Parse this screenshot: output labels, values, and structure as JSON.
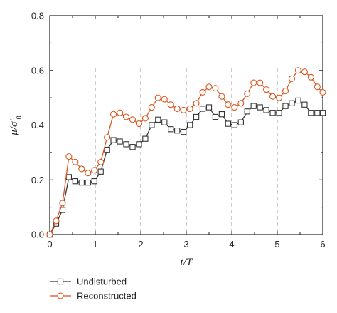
{
  "chart_data": {
    "type": "line",
    "xlabel": "t/T",
    "ylabel": "μ/σ′0",
    "xlim": [
      0,
      6
    ],
    "ylim": [
      0,
      0.8
    ],
    "xticks": [
      "0",
      "1",
      "2",
      "3",
      "4",
      "5",
      "6"
    ],
    "yticks": [
      "0.0",
      "0.2",
      "0.4",
      "0.6",
      "0.8"
    ],
    "vlines": [
      1,
      2,
      3,
      4,
      5
    ],
    "legend_position": "bottom-left",
    "series": [
      {
        "name": "Undisturbed",
        "color": "#333333",
        "marker": "square",
        "x": [
          0,
          0.14,
          0.28,
          0.42,
          0.56,
          0.7,
          0.84,
          0.98,
          1.12,
          1.26,
          1.4,
          1.54,
          1.68,
          1.82,
          1.96,
          2.1,
          2.24,
          2.38,
          2.52,
          2.66,
          2.8,
          2.94,
          3.08,
          3.22,
          3.36,
          3.5,
          3.64,
          3.78,
          3.92,
          4.06,
          4.2,
          4.34,
          4.48,
          4.62,
          4.76,
          4.9,
          5.04,
          5.18,
          5.32,
          5.46,
          5.6,
          5.74,
          5.88,
          6.0
        ],
        "values": [
          0.0,
          0.04,
          0.09,
          0.21,
          0.195,
          0.19,
          0.19,
          0.195,
          0.23,
          0.31,
          0.345,
          0.34,
          0.33,
          0.32,
          0.33,
          0.35,
          0.4,
          0.42,
          0.41,
          0.385,
          0.38,
          0.375,
          0.4,
          0.43,
          0.46,
          0.465,
          0.43,
          0.44,
          0.405,
          0.4,
          0.41,
          0.45,
          0.47,
          0.465,
          0.455,
          0.445,
          0.445,
          0.47,
          0.48,
          0.49,
          0.475,
          0.445,
          0.445,
          0.445
        ]
      },
      {
        "name": "Reconstructed",
        "color": "#d9541e",
        "marker": "circle",
        "x": [
          0,
          0.14,
          0.28,
          0.42,
          0.56,
          0.7,
          0.84,
          0.98,
          1.12,
          1.26,
          1.4,
          1.54,
          1.68,
          1.82,
          1.96,
          2.1,
          2.24,
          2.38,
          2.52,
          2.66,
          2.8,
          2.94,
          3.08,
          3.22,
          3.36,
          3.5,
          3.64,
          3.78,
          3.92,
          4.06,
          4.2,
          4.34,
          4.48,
          4.62,
          4.76,
          4.9,
          5.04,
          5.18,
          5.32,
          5.46,
          5.6,
          5.74,
          5.88,
          6.0
        ],
        "values": [
          0.0,
          0.05,
          0.115,
          0.285,
          0.265,
          0.24,
          0.225,
          0.235,
          0.265,
          0.355,
          0.44,
          0.445,
          0.43,
          0.42,
          0.405,
          0.425,
          0.465,
          0.5,
          0.495,
          0.475,
          0.46,
          0.455,
          0.46,
          0.48,
          0.52,
          0.54,
          0.535,
          0.505,
          0.475,
          0.465,
          0.48,
          0.515,
          0.555,
          0.555,
          0.53,
          0.505,
          0.5,
          0.525,
          0.57,
          0.6,
          0.595,
          0.575,
          0.54,
          0.52
        ]
      }
    ]
  }
}
